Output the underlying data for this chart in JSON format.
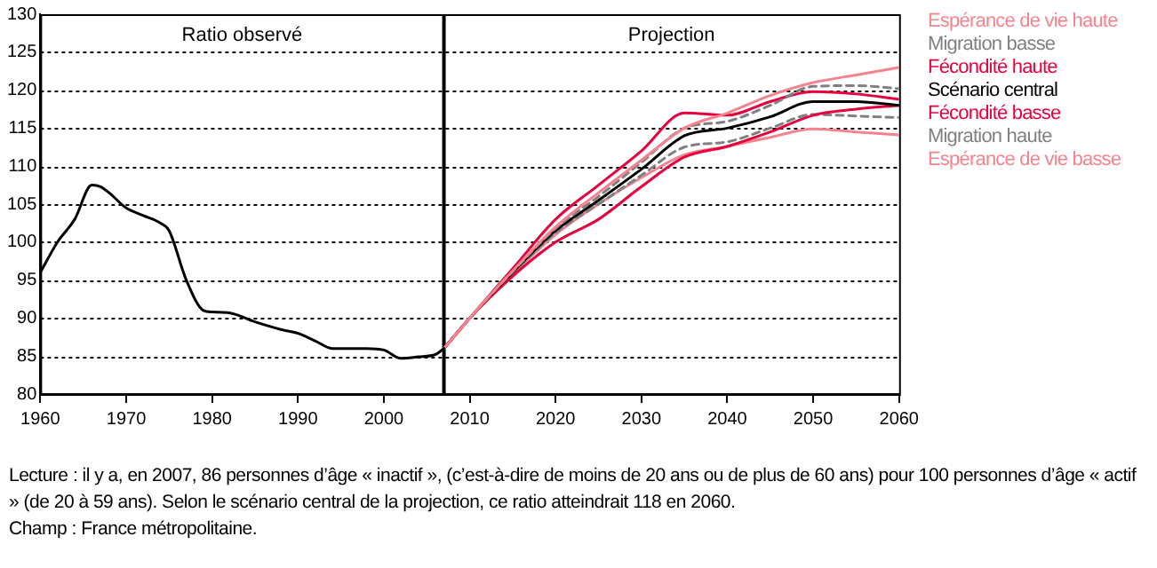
{
  "chart_data": {
    "type": "line",
    "xlim": [
      1960,
      2060
    ],
    "xticks": [
      1960,
      1970,
      1980,
      1990,
      2000,
      2010,
      2020,
      2030,
      2040,
      2050,
      2060
    ],
    "ylim": [
      80,
      130
    ],
    "yticks": [
      80,
      85,
      90,
      95,
      100,
      105,
      110,
      115,
      120,
      125,
      130
    ],
    "grid": "y",
    "legend": "right",
    "marker": "none",
    "series": [
      {
        "color": "#000000",
        "x": [
          1960,
          1962,
          1964,
          1966,
          1967,
          1968,
          1970,
          1972,
          1974,
          1975,
          1977,
          1979,
          1980,
          1982,
          1985,
          1988,
          1990,
          1992,
          1994,
          1996,
          1998,
          2000,
          2002,
          2004,
          2006,
          2007
        ],
        "values": [
          96,
          100,
          103,
          107.5,
          107.3,
          106.5,
          104.5,
          103.5,
          102.5,
          101.5,
          95,
          91,
          90.8,
          90.7,
          89.5,
          88.5,
          88,
          87,
          86,
          86,
          86,
          85.8,
          84.7,
          84.9,
          85.2,
          86
        ]
      },
      {
        "name": "Espérance de vie haute",
        "color": "#f4838e",
        "x": [
          2007,
          2010,
          2015,
          2020,
          2025,
          2030,
          2035,
          2040,
          2045,
          2050,
          2055,
          2060
        ],
        "values": [
          86,
          90,
          96.2,
          102,
          106.5,
          110.8,
          115,
          117,
          119.3,
          121,
          122,
          123
        ]
      },
      {
        "name": "Migration basse",
        "color": "#808080",
        "line_style": "dashed",
        "x": [
          2007,
          2010,
          2015,
          2020,
          2025,
          2030,
          2035,
          2040,
          2045,
          2050,
          2055,
          2060
        ],
        "values": [
          86,
          90,
          96.1,
          101.8,
          106,
          110.5,
          115,
          115.9,
          118,
          120.5,
          120.6,
          120.2
        ]
      },
      {
        "name": "Fécondité haute",
        "color": "#e8003c",
        "x": [
          2007,
          2010,
          2015,
          2020,
          2025,
          2030,
          2035,
          2040,
          2045,
          2050,
          2055,
          2060
        ],
        "values": [
          86,
          90,
          96.5,
          103,
          107.5,
          112,
          117,
          116.7,
          118.5,
          119.8,
          119.5,
          118.8
        ]
      },
      {
        "name": "Scénario central",
        "color": "#000000",
        "x": [
          2007,
          2010,
          2015,
          2020,
          2025,
          2030,
          2035,
          2040,
          2045,
          2050,
          2055,
          2060
        ],
        "values": [
          86,
          90,
          96,
          101.5,
          105.5,
          109.6,
          114,
          115,
          116.5,
          118.5,
          118.5,
          118
        ]
      },
      {
        "name": "Fécondité basse",
        "color": "#e8003c",
        "x": [
          2007,
          2010,
          2015,
          2020,
          2025,
          2030,
          2035,
          2040,
          2045,
          2050,
          2055,
          2060
        ],
        "values": [
          86,
          90,
          95.5,
          100,
          103,
          107.3,
          111.2,
          112.6,
          114.5,
          116.7,
          117.5,
          118
        ]
      },
      {
        "name": "Migration haute",
        "color": "#808080",
        "line_style": "dashed",
        "x": [
          2007,
          2010,
          2015,
          2020,
          2025,
          2030,
          2035,
          2040,
          2045,
          2050,
          2055,
          2060
        ],
        "values": [
          86,
          90,
          95.9,
          101.2,
          105,
          108.8,
          112.5,
          113.2,
          115,
          116.8,
          116.6,
          116.4
        ]
      },
      {
        "name": "Espérance de vie basse",
        "color": "#f4838e",
        "x": [
          2007,
          2010,
          2015,
          2020,
          2025,
          2030,
          2035,
          2040,
          2045,
          2050,
          2055,
          2060
        ],
        "values": [
          86,
          90,
          95.8,
          101,
          105,
          108.5,
          111.5,
          112.6,
          113.8,
          114.9,
          114.5,
          114.1
        ]
      }
    ],
    "ref_lines": [
      {
        "axis": "x",
        "value": 2007,
        "color": "#000000"
      }
    ],
    "annotations": [
      "Ratio observé",
      "Projection",
      "Lecture : il y a, en 2007, 86 personnes d’âge « inactif », (c’est-à-dire de moins de 20 ans ou de plus de 60 ans) pour 100 personnes d’âge « actif » (de 20 à 59 ans). Selon le scénario central de la projection, ce ratio atteindrait 118 en 2060.",
      "Champ : France métropolitaine."
    ]
  }
}
